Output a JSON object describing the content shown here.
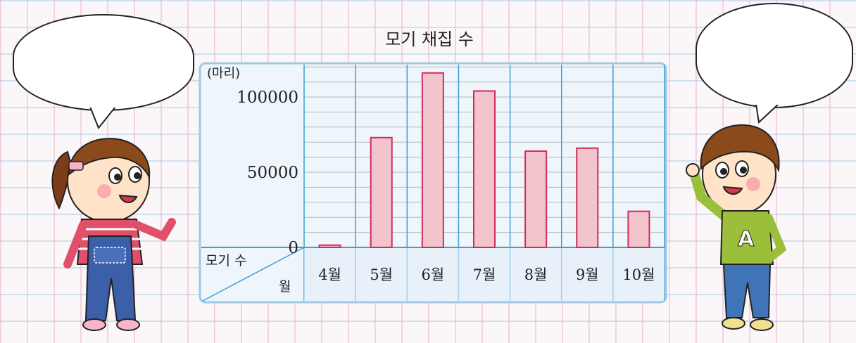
{
  "chart_data": {
    "type": "bar",
    "title": "모기 채집 수",
    "ylabel": "(마리)",
    "row_header_top": "모기 수",
    "row_header_bottom": "월",
    "categories": [
      "4월",
      "5월",
      "6월",
      "7월",
      "8월",
      "9월",
      "10월"
    ],
    "values": [
      1500,
      73000,
      116000,
      104000,
      64000,
      66000,
      24000
    ],
    "y_ticks": [
      0,
      50000,
      100000
    ],
    "y_tick_labels": [
      "0",
      "50000",
      "100000"
    ],
    "ylim": [
      0,
      120000
    ],
    "grid": true,
    "bar_color": "#f2c4cc",
    "bar_edge_color": "#d42a5c"
  },
  "bubbles": {
    "left_text": "",
    "right_text": ""
  },
  "colors": {
    "panel_bg": "#eef5fb",
    "panel_border": "#9ec9e6",
    "axis_line": "#3d9fd6"
  }
}
